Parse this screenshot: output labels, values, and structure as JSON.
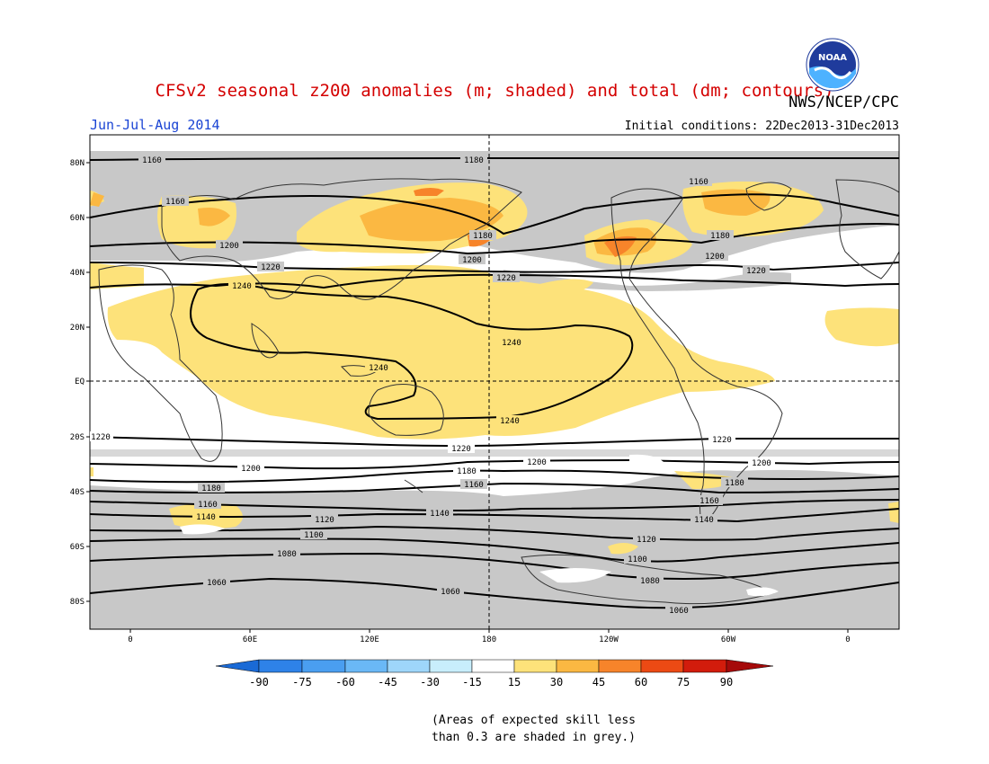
{
  "title": "CFSv2 seasonal z200 anomalies (m; shaded) and total (dm; contours)",
  "agency": "NWS/NCEP/CPC",
  "period": "Jun-Jul-Aug 2014",
  "initial_conditions": "Initial conditions: 22Dec2013-31Dec2013",
  "logo_text": "NOAA",
  "note_lines": [
    "(Areas of expected skill less",
    "than 0.3 are shaded in grey.)"
  ],
  "map": {
    "lat_labels": [
      "80N",
      "60N",
      "40N",
      "20N",
      "EQ",
      "20S",
      "40S",
      "60S",
      "80S"
    ],
    "lon_labels": [
      "0",
      "60E",
      "120E",
      "180",
      "120W",
      "60W",
      "0"
    ],
    "contour_labels": [
      "1160",
      "1180",
      "1200",
      "1220",
      "1240",
      "1120",
      "1100",
      "1080",
      "1060",
      "1140"
    ]
  },
  "colorbar": {
    "ticks": [
      "-90",
      "-75",
      "-60",
      "-45",
      "-30",
      "-15",
      "15",
      "30",
      "45",
      "60",
      "75",
      "90"
    ],
    "colors": [
      "#1a6ad6",
      "#2e82e8",
      "#4a9ef0",
      "#6ab8f6",
      "#9ed6fa",
      "#c8eefc",
      "#ffffff",
      "#fde27a",
      "#fbb842",
      "#f7842a",
      "#ec4a14",
      "#d21c0c",
      "#a50a0a"
    ]
  },
  "colors": {
    "grey_skill": "#c8c8c8",
    "pos_15_30": "#fde27a",
    "pos_30_45": "#fbb842",
    "pos_45_60": "#f7842a",
    "title": "#d40000",
    "period": "#1a44d4"
  }
}
